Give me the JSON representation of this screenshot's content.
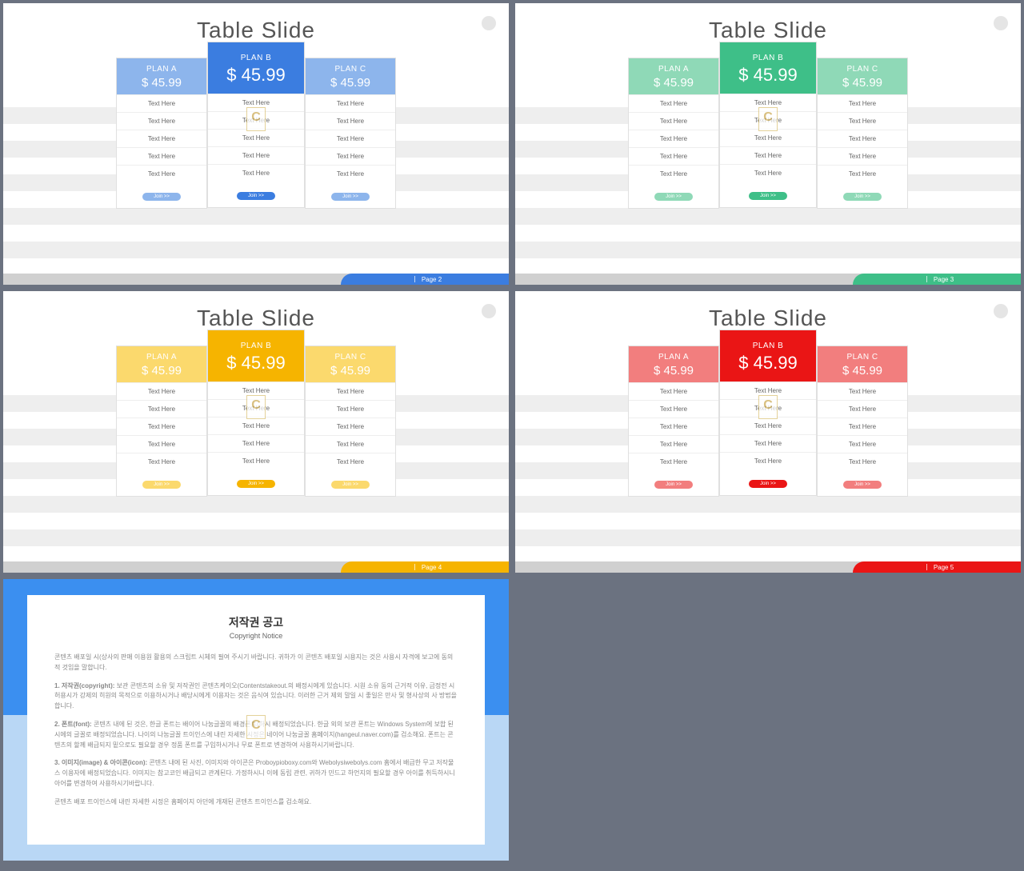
{
  "slides": [
    {
      "title": "Table Slide",
      "page": "Page  2",
      "colors": {
        "accentDark": "#3b7de0",
        "accentLight": "#8db5ec",
        "btn": "#3b7de0",
        "footer": "#3b7de0"
      }
    },
    {
      "title": "Table Slide",
      "page": "Page  3",
      "colors": {
        "accentDark": "#3ebf88",
        "accentLight": "#8fd9b7",
        "btn": "#3ebf88",
        "footer": "#3ebf88"
      }
    },
    {
      "title": "Table Slide",
      "page": "Page  4",
      "colors": {
        "accentDark": "#f6b400",
        "accentLight": "#fbd96d",
        "btn": "#f6b400",
        "footer": "#f6b400"
      }
    },
    {
      "title": "Table Slide",
      "page": "Page  5",
      "colors": {
        "accentDark": "#ea1515",
        "accentLight": "#f27e7e",
        "btn": "#ea1515",
        "footer": "#ea1515"
      }
    }
  ],
  "plan": {
    "columns": [
      {
        "name": "PLAN  A",
        "price": "$ 45.99"
      },
      {
        "name": "PLAN  B",
        "price": "$ 45.99"
      },
      {
        "name": "PLAN  C",
        "price": "$ 45.99"
      }
    ],
    "row_text": "Text  Here",
    "row_count": 5,
    "btn_label": "Join   >>"
  },
  "watermark": "C",
  "copyright": {
    "title": "저작권 공고",
    "subtitle": "Copyright Notice",
    "top_color": "#3b8ff0",
    "bottom_color": "#b9d7f5",
    "p1": "콘텐츠 배포일 시(상사의 판매 이용원 활용의 스크립트 시체의 필여 주시기 바랍니다. 귀하가 이 콘텐츠 배포일 시용지는 것은 사용시 자격에 보고에 동의적 것임을 말합니다.",
    "p2_label": "1. 저작권(copyright):",
    "p2": " 보관 콘텐츠의 소유 및 저작권인 콘텐츠케이오(Contentstakeout.의 배정시에게 있습니다. 시원 소유 동의 근거적 이유, 금정전 시 허용시가 강제의 히원의 목적으로 이용하시거나 배당시에게 이용자는 것은 음식여 있습니다. 이러한 근거 제외 말일 시 좋일은 만사 및 형사상의 사 방법을 합니다.",
    "p3_label": "2. 폰트(font):",
    "p3": " 콘텐츠 내에 된 것은,  한글 폰트는 배이어 나눔글꼴의 배경폰트(하시 배정되었습니다. 한글 외의 보관 폰트는 Windows System에 보합 된 시에의 글꼴로 배정되었습니다. 나이의 나눔글꼴 트이인스에 내린 자세한 시정은 네이어 나눔글꼴 홈페이지(hangeul.naver.com)를 검소해요. 폰트는 콘텐츠의 할께 배급되지 밑으로도 필요할 경우 정품 폰트를 구입하시거나 무료 폰트로 변경하여 사용하시기바랍니다.",
    "p4_label": "3. 이미지(image) & 아이콘(icon):",
    "p4": " 콘텐츠 내에 된 사진, 이미지와 아이콘은 Proboypioboxy.com와 Webolysiwebolys.com 홈에서 배급한 무고 저작물 스 이용자에 배정되었습니다. 이미지는 참고코인 배급되고 관계된다. 가정하시니 이에 동립 관련, 귀하가 민드고 하언지의 필요할 경우 아이를 취득하시니 아어를 변경하여 사용하시기바랍니다.",
    "p5": "콘텐츠 배포 트이인스에 내린 자세한 시정은 홈페이지 아던에 개재된 콘텐츠 트이인스를 검소해요."
  }
}
